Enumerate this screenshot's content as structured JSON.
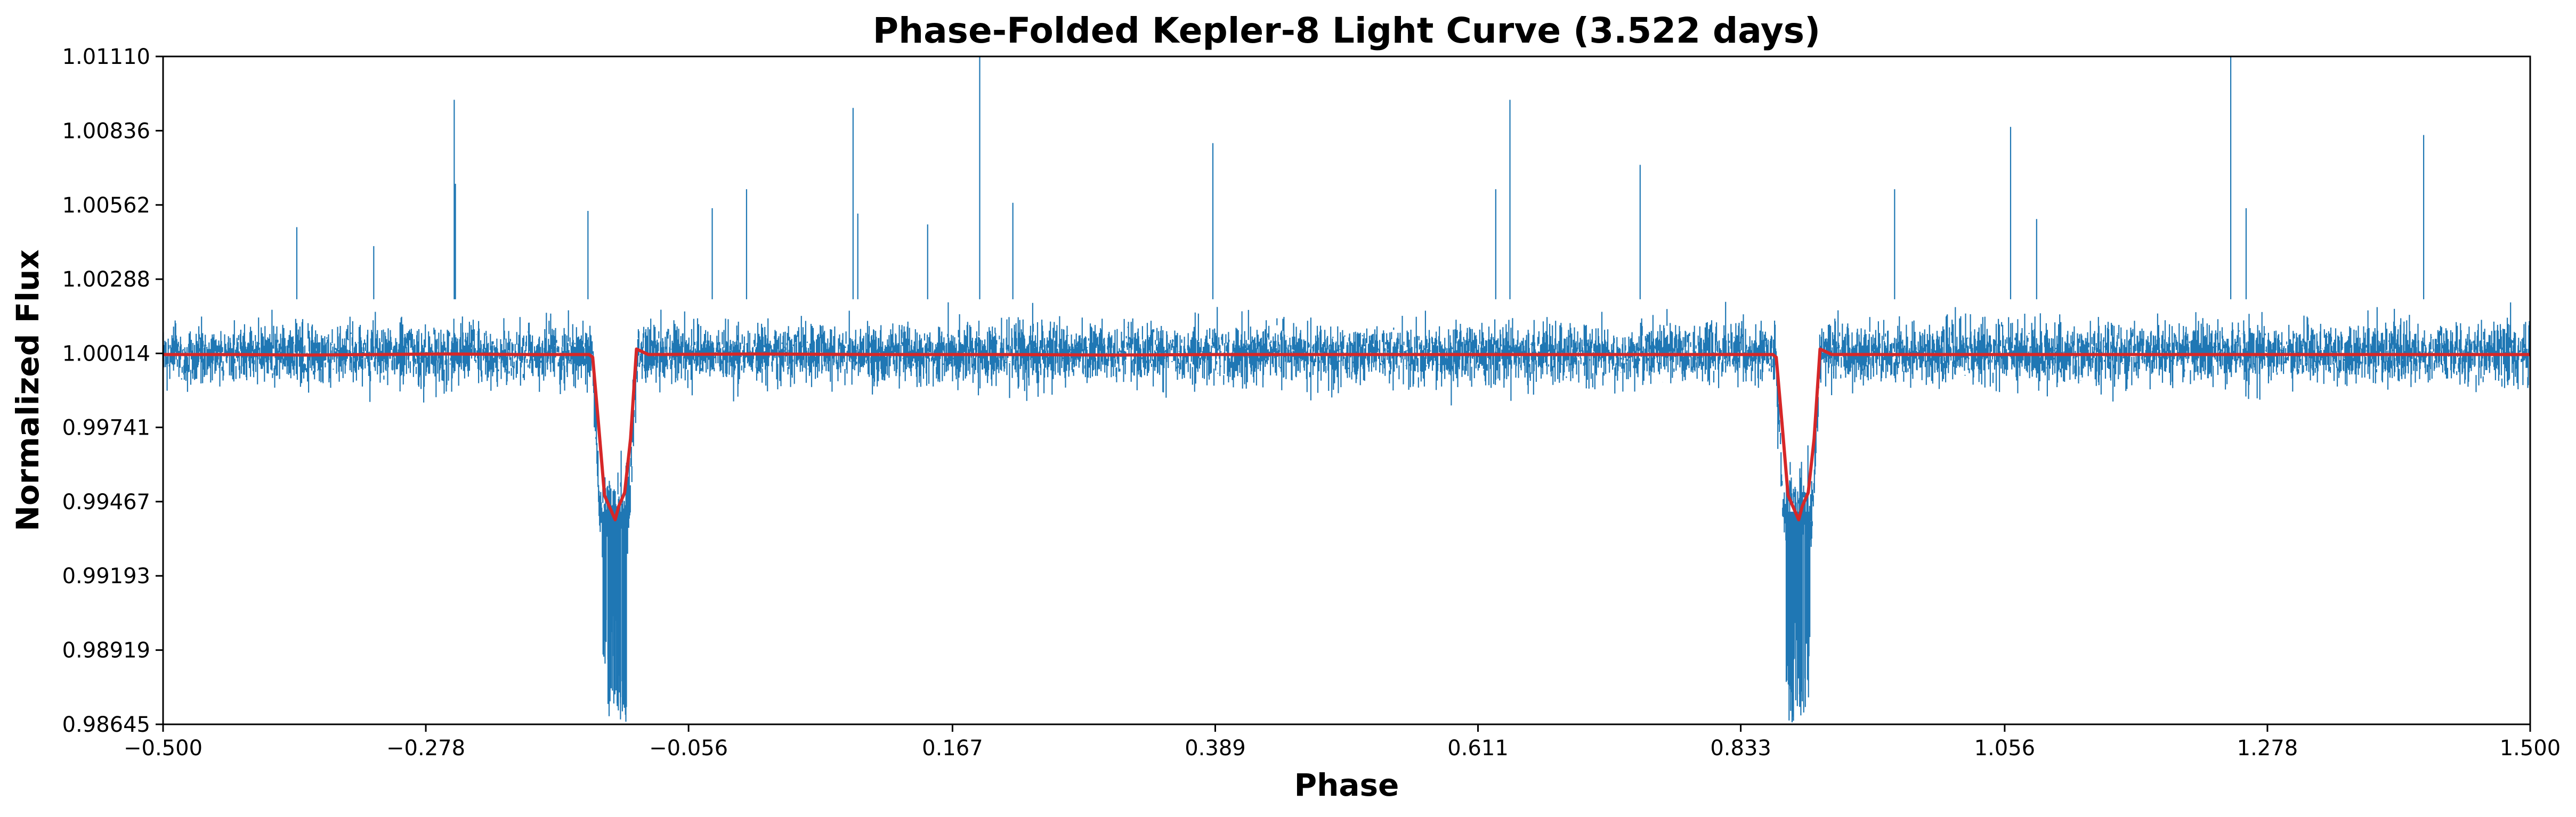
{
  "chart_data": {
    "type": "line",
    "title": "Phase-Folded Kepler-8 Light Curve (3.522 days)",
    "xlabel": "Phase",
    "ylabel": "Normalized Flux",
    "xlim": [
      -0.5,
      1.5
    ],
    "ylim": [
      0.98645,
      1.0111
    ],
    "x_ticks": [
      "−0.500",
      "−0.278",
      "−0.056",
      "0.167",
      "0.389",
      "0.611",
      "0.833",
      "1.056",
      "1.278",
      "1.500"
    ],
    "x_tick_values": [
      -0.5,
      -0.278,
      -0.056,
      0.167,
      0.389,
      0.611,
      0.833,
      1.056,
      1.278,
      1.5
    ],
    "y_ticks": [
      "0.98645",
      "0.98919",
      "0.99193",
      "0.99467",
      "0.99741",
      "1.00014",
      "1.00288",
      "1.00562",
      "1.00836",
      "1.01110"
    ],
    "y_tick_values": [
      0.98645,
      0.98919,
      0.99193,
      0.99467,
      0.99741,
      1.00014,
      1.00288,
      1.00562,
      1.00836,
      1.0111
    ],
    "grid": false,
    "legend": "none",
    "colors": {
      "raw": "#1f77b4",
      "binned": "#d62728"
    },
    "series": [
      {
        "kind": "raw-flux",
        "noise_band": [
          0.9984,
          1.0022
        ],
        "transits": [
          {
            "phase_start": -0.137,
            "phase_end": -0.1,
            "min_flux": 0.9865
          },
          {
            "phase_start": 0.863,
            "phase_end": 0.9,
            "min_flux": 0.9865
          }
        ],
        "spikes": [
          {
            "x": -0.387,
            "y": 1.0048
          },
          {
            "x": -0.322,
            "y": 1.0041
          },
          {
            "x": -0.254,
            "y": 1.0095
          },
          {
            "x": -0.253,
            "y": 1.0064
          },
          {
            "x": -0.141,
            "y": 1.0054
          },
          {
            "x": -0.036,
            "y": 1.0055
          },
          {
            "x": -0.007,
            "y": 1.0062
          },
          {
            "x": 0.083,
            "y": 1.0092
          },
          {
            "x": 0.087,
            "y": 1.0053
          },
          {
            "x": 0.146,
            "y": 1.0049
          },
          {
            "x": 0.19,
            "y": 1.0111
          },
          {
            "x": 0.218,
            "y": 1.0057
          },
          {
            "x": 0.387,
            "y": 1.0079
          },
          {
            "x": 0.626,
            "y": 1.0062
          },
          {
            "x": 0.638,
            "y": 1.0095
          },
          {
            "x": 0.748,
            "y": 1.0071
          },
          {
            "x": 0.963,
            "y": 1.0062
          },
          {
            "x": 1.061,
            "y": 1.0085
          },
          {
            "x": 1.083,
            "y": 1.0051
          },
          {
            "x": 1.247,
            "y": 1.0111
          },
          {
            "x": 1.26,
            "y": 1.0055
          },
          {
            "x": 1.41,
            "y": 1.0082
          }
        ]
      },
      {
        "kind": "binned-model",
        "x": [
          -0.5,
          -0.44,
          -0.38,
          -0.32,
          -0.26,
          -0.2,
          -0.14,
          -0.137,
          -0.132,
          -0.127,
          -0.123,
          -0.118,
          -0.115,
          -0.11,
          -0.105,
          -0.1,
          -0.09,
          0.0,
          0.1,
          0.2,
          0.3,
          0.4,
          0.5,
          0.6,
          0.7,
          0.8,
          0.86,
          0.863,
          0.868,
          0.873,
          0.877,
          0.882,
          0.885,
          0.89,
          0.895,
          0.9,
          0.91,
          1.0,
          1.1,
          1.2,
          1.3,
          1.4,
          1.5
        ],
        "y": [
          1.0001,
          1.0001,
          1.00008,
          1.0001,
          1.00012,
          1.0001,
          1.0001,
          1.0,
          0.9975,
          0.9949,
          0.9945,
          0.994,
          0.9945,
          0.995,
          0.997,
          1.0003,
          1.0001,
          1.00012,
          1.0001,
          1.0001,
          1.00008,
          1.0001,
          1.0001,
          1.0001,
          1.0001,
          1.0001,
          1.0001,
          1.0,
          0.9975,
          0.9949,
          0.9945,
          0.994,
          0.9945,
          0.995,
          0.997,
          1.0003,
          1.0001,
          1.0001,
          1.0001,
          1.0001,
          1.0001,
          1.0001,
          1.0001
        ]
      }
    ]
  }
}
